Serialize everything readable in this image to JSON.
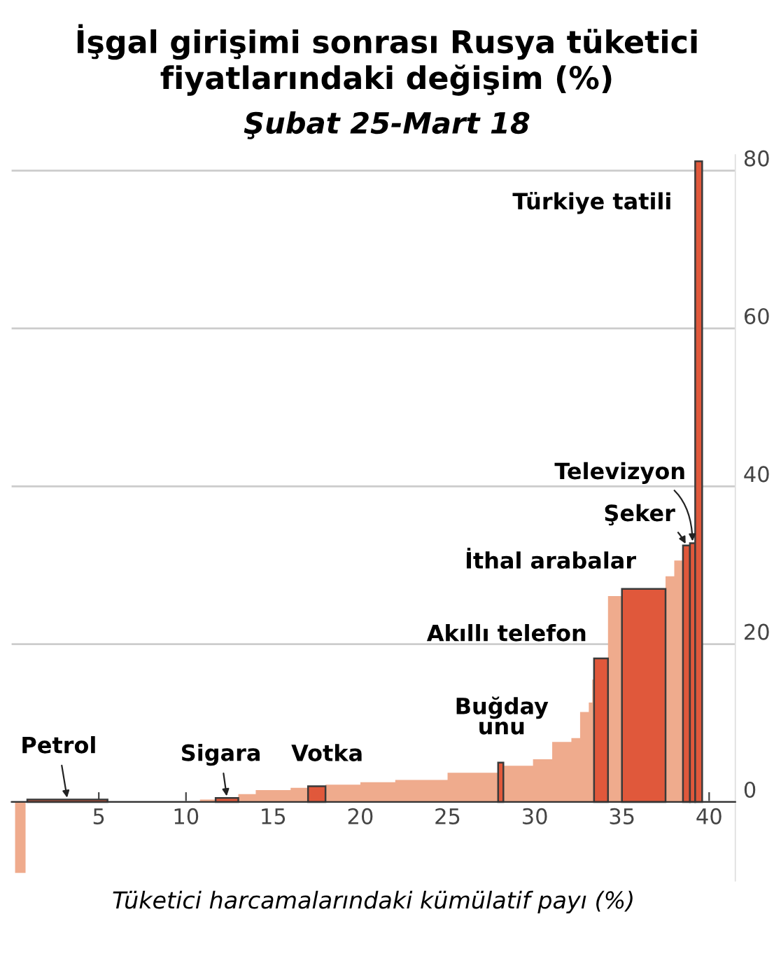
{
  "chart_data": {
    "type": "area",
    "title": "İşgal girişimi sonrası Rusya tüketici fiyatlarındaki değişim (%)",
    "subtitle": "Şubat 25-Mart 18",
    "xlabel": "Tüketici harcamalarındaki kümülatif payı (%)",
    "xlim": [
      0,
      41.5
    ],
    "ylim": [
      -10,
      82
    ],
    "xticks": [
      5,
      10,
      15,
      20,
      25,
      30,
      35,
      40
    ],
    "yticks": [
      0,
      20,
      40,
      60,
      80
    ],
    "grid": "y",
    "legend": false,
    "series": [
      {
        "color": "#efab8d",
        "x": [
          0.2,
          0.2,
          0.8,
          0.8,
          null,
          10.8,
          10.8,
          11.7,
          11.7,
          null,
          13.0,
          13.0,
          14.0,
          14.0,
          16.0,
          16.0,
          17.0,
          17.0,
          null,
          18.0,
          18.0,
          20.0,
          20.0,
          22.0,
          22.0,
          25.0,
          25.0,
          27.9,
          27.9,
          null,
          28.2,
          28.2,
          29.9,
          29.9,
          31.0,
          31.0,
          32.1,
          32.1,
          32.6,
          32.6,
          33.1,
          33.1,
          33.3,
          33.3,
          33.4,
          33.4,
          null,
          34.2,
          34.2,
          35.0,
          35.0,
          null,
          37.5,
          37.5,
          38.0,
          38.0,
          38.5,
          38.5
        ],
        "values": [
          0,
          -9,
          -9,
          0,
          null,
          0,
          0.3,
          0.3,
          0,
          null,
          0,
          1.0,
          1.0,
          1.5,
          1.5,
          1.8,
          1.8,
          0,
          null,
          0,
          2.2,
          2.2,
          2.5,
          2.5,
          2.8,
          2.8,
          3.7,
          3.7,
          0,
          null,
          0,
          4.6,
          4.6,
          5.4,
          5.4,
          7.6,
          7.6,
          8.1,
          8.1,
          11.4,
          11.4,
          12.6,
          12.6,
          15.5,
          15.5,
          0,
          null,
          0,
          26.1,
          26.1,
          0,
          null,
          0,
          28.6,
          28.6,
          30.6,
          30.6,
          0
        ]
      },
      {
        "name": "Petrol",
        "color": "#e0583b",
        "x": [
          0.9,
          0.9,
          5.5,
          5.5
        ],
        "values": [
          0,
          0.3,
          0.3,
          0
        ]
      },
      {
        "name": "Sigara",
        "color": "#e0583b",
        "x": [
          11.7,
          11.7,
          13.0,
          13.0
        ],
        "values": [
          0,
          0.5,
          0.5,
          0
        ]
      },
      {
        "name": "Votka",
        "color": "#e0583b",
        "x": [
          17.0,
          17.0,
          18.0,
          18.0
        ],
        "values": [
          0,
          2.0,
          2.0,
          0
        ]
      },
      {
        "name": "Buğday\nunu",
        "color": "#e0583b",
        "x": [
          27.9,
          27.9,
          28.2,
          28.2
        ],
        "values": [
          0,
          5.0,
          5.0,
          0
        ]
      },
      {
        "name": "Akıllı telefon",
        "color": "#e0583b",
        "x": [
          33.4,
          33.4,
          34.2,
          34.2
        ],
        "values": [
          0,
          18.2,
          18.2,
          0
        ]
      },
      {
        "name": "İthal arabalar",
        "color": "#e0583b",
        "x": [
          35.0,
          35.0,
          37.5,
          37.5
        ],
        "values": [
          0,
          27.0,
          27.0,
          0
        ]
      },
      {
        "name": "Şeker",
        "color": "#e0583b",
        "x": [
          38.5,
          38.5,
          38.9,
          38.9
        ],
        "values": [
          0,
          32.5,
          32.5,
          0
        ]
      },
      {
        "name": "Televizyon",
        "color": "#e0583b",
        "x": [
          38.9,
          38.9,
          39.2,
          39.2
        ],
        "values": [
          0,
          32.8,
          32.8,
          0
        ]
      },
      {
        "name": "Türkiye tatili",
        "color": "#e0583b",
        "x": [
          39.2,
          39.2,
          39.6,
          39.6
        ],
        "values": [
          0,
          81.2,
          81.2,
          0
        ]
      }
    ]
  }
}
